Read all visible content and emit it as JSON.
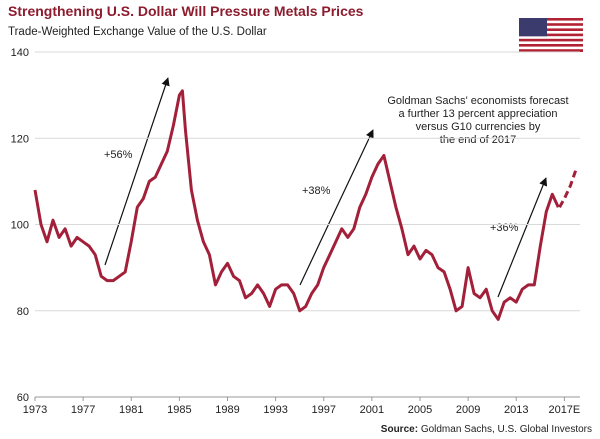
{
  "chart_data": {
    "type": "line",
    "title": "Strengthening U.S. Dollar Will Pressure Metals Prices",
    "subtitle": "Trade-Weighted Exchange Value of the U.S. Dollar",
    "source_label": "Source:",
    "source": "Goldman Sachs, U.S. Global Investors",
    "annotations": [
      "+56%",
      "+38%",
      "+36%"
    ],
    "note": [
      "Goldman Sachs' economists forecast",
      "a further 13 percent appreciation",
      "versus G10 currencies by",
      "the end of 2017"
    ],
    "xlim": [
      1973,
      2018.3
    ],
    "xticks": [
      1973,
      1977,
      1981,
      1985,
      1989,
      1993,
      1997,
      2001,
      2005,
      2009,
      2013,
      {
        "value": 2017,
        "label": "2017E"
      }
    ],
    "ylim": [
      60,
      140
    ],
    "yticks": [
      60,
      80,
      100,
      120,
      140
    ],
    "grid": true,
    "series": [
      {
        "color": "#a3203a",
        "dashed": false,
        "x": [
          1973,
          1973.5,
          1974,
          1974.5,
          1975,
          1975.5,
          1976,
          1976.5,
          1977,
          1977.5,
          1978,
          1978.5,
          1979,
          1979.5,
          1980,
          1980.5,
          1981,
          1981.5,
          1982,
          1982.5,
          1983,
          1983.5,
          1984,
          1984.5,
          1985,
          1985.25,
          1985.5,
          1986,
          1986.5,
          1987,
          1987.5,
          1988,
          1988.5,
          1989,
          1989.5,
          1990,
          1990.5,
          1991,
          1991.5,
          1992,
          1992.5,
          1993,
          1993.5,
          1994,
          1994.5,
          1995,
          1995.5,
          1996,
          1996.5,
          1997,
          1997.5,
          1998,
          1998.5,
          1999,
          1999.5,
          2000,
          2000.5,
          2001,
          2001.5,
          2002,
          2002.5,
          2003,
          2003.5,
          2004,
          2004.5,
          2005,
          2005.5,
          2006,
          2006.5,
          2007,
          2007.5,
          2008,
          2008.5,
          2009,
          2009.5,
          2010,
          2010.5,
          2011,
          2011.5,
          2012,
          2012.5,
          2013,
          2013.5,
          2014,
          2014.5,
          2015,
          2015.5,
          2016,
          2016.5
        ],
        "values": [
          108,
          100,
          96,
          101,
          97,
          99,
          95,
          97,
          96,
          95,
          93,
          88,
          87,
          87,
          88,
          89,
          96,
          104,
          106,
          110,
          111,
          114,
          117,
          123,
          130,
          131,
          122,
          108,
          101,
          96,
          93,
          86,
          89,
          91,
          88,
          87,
          83,
          84,
          86,
          84,
          81,
          85,
          86,
          86,
          84,
          80,
          81,
          84,
          86,
          90,
          93,
          96,
          99,
          97,
          99,
          104,
          107,
          111,
          114,
          116,
          110,
          104,
          99,
          93,
          95,
          92,
          94,
          93,
          90,
          89,
          85,
          80,
          81,
          90,
          84,
          83,
          85,
          80,
          78,
          82,
          83,
          82,
          85,
          86,
          86,
          95,
          103,
          107,
          104
        ]
      },
      {
        "color": "#a3203a",
        "dashed": true,
        "x": [
          2016.6,
          2017,
          2017.5,
          2018
        ],
        "values": [
          104,
          106,
          109,
          113
        ]
      }
    ]
  }
}
